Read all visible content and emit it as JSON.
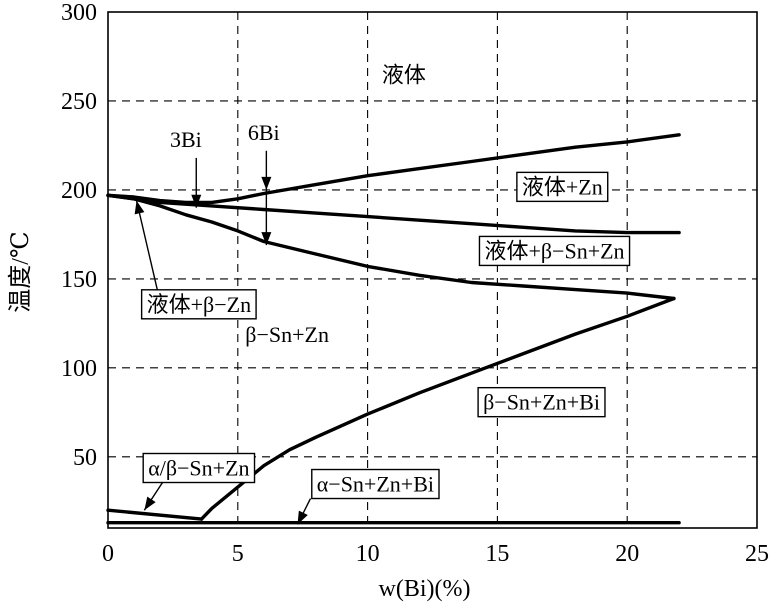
{
  "chart_data": {
    "type": "line",
    "xlabel": "w(Bi)(%)",
    "ylabel": "温度/℃",
    "xlim": [
      0,
      25
    ],
    "ylim": [
      10,
      300
    ],
    "x_ticks": [
      "0",
      "5",
      "10",
      "15",
      "20",
      "25"
    ],
    "y_ticks": [
      "50",
      "100",
      "150",
      "200",
      "250",
      "300"
    ],
    "grid": true,
    "series": [
      {
        "x": [
          0,
          1,
          2,
          3,
          4,
          5,
          6,
          8,
          10,
          12,
          14,
          16,
          18,
          20,
          22
        ],
        "y": [
          197,
          196,
          194,
          193,
          193,
          195,
          198,
          203,
          208,
          212,
          216,
          220,
          224,
          227,
          231
        ]
      },
      {
        "x": [
          0,
          2,
          4,
          6,
          8,
          10,
          12,
          14,
          16,
          18,
          20,
          22
        ],
        "y": [
          197,
          193,
          191,
          189,
          187,
          185,
          183,
          181,
          179,
          177,
          176,
          176
        ]
      },
      {
        "x": [
          0,
          1,
          2,
          3,
          4,
          5,
          6,
          8,
          10,
          12,
          14,
          16,
          18,
          20,
          21.8
        ],
        "y": [
          197,
          195,
          191,
          186,
          182,
          177,
          171,
          164,
          157,
          152,
          148,
          146,
          144,
          142,
          139
        ]
      },
      {
        "x": [
          3.6,
          4,
          5,
          6,
          7,
          8,
          10,
          12,
          14,
          16,
          18,
          20,
          21.8
        ],
        "y": [
          15,
          21,
          33,
          45,
          54,
          61,
          74,
          86,
          97,
          108,
          119,
          129,
          139
        ]
      },
      {
        "x": [
          0,
          3.6
        ],
        "y": [
          20,
          15
        ]
      },
      {
        "x": [
          0,
          22
        ],
        "y": [
          13,
          13
        ]
      }
    ],
    "region_labels": [
      {
        "text": "液体",
        "x": 11.4,
        "y": 265
      },
      {
        "text": "液体+Zn",
        "x": 17.5,
        "y": 202
      },
      {
        "text": "液体+β−Sn+Zn",
        "x": 17.2,
        "y": 166
      },
      {
        "text": "β−Sn+Zn",
        "x": 6.9,
        "y": 119
      },
      {
        "text": "β−Sn+Zn+Bi",
        "x": 16.7,
        "y": 81
      }
    ],
    "annotations": [
      {
        "text": "3Bi",
        "x": 3,
        "y": 228
      },
      {
        "text": "6Bi",
        "x": 6,
        "y": 232
      },
      {
        "text": "液体+β−Zn",
        "x": 3.5,
        "y": 136
      },
      {
        "text": "α/β−Sn+Zn",
        "x": 3.5,
        "y": 44
      },
      {
        "text": "α−Sn+Zn+Bi",
        "x": 10.3,
        "y": 35
      }
    ]
  }
}
